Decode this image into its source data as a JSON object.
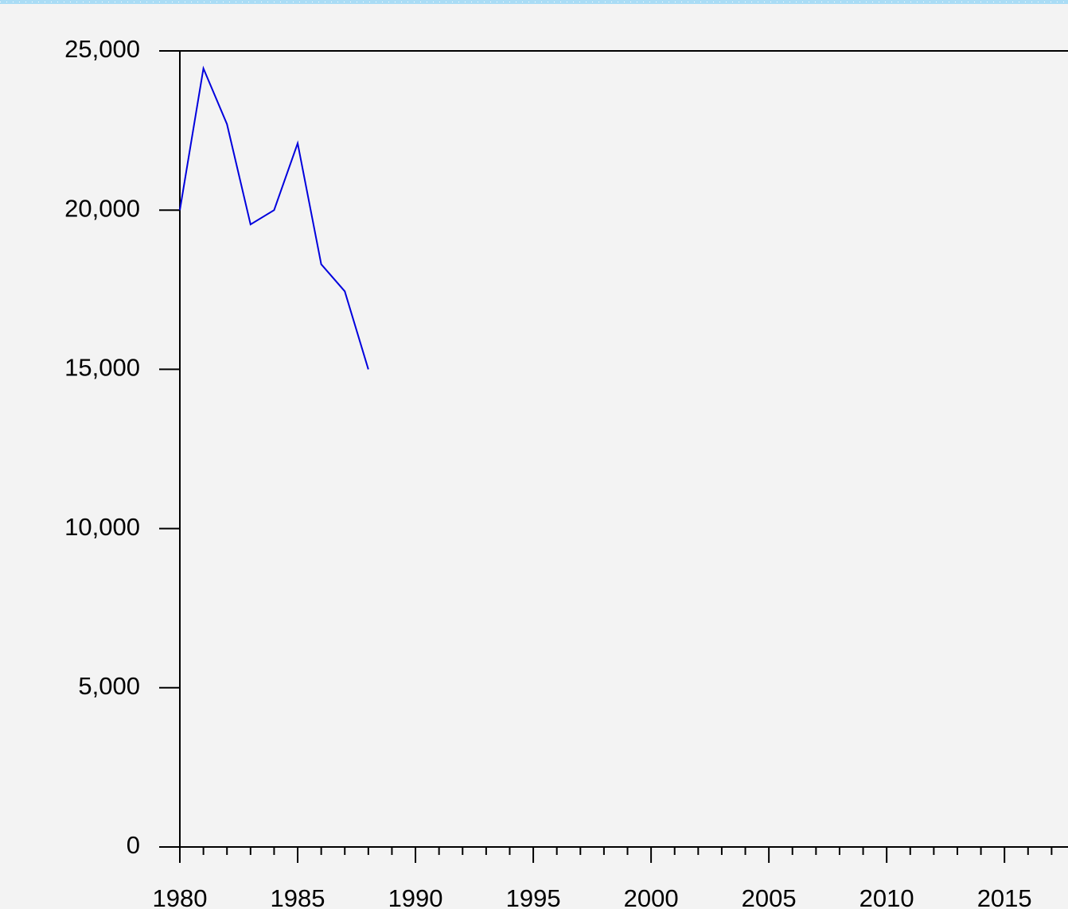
{
  "chart_data": {
    "type": "line",
    "x": [
      1980,
      1981,
      1982,
      1983,
      1984,
      1985,
      1986,
      1987,
      1988
    ],
    "series": [
      {
        "color": "#0000dd",
        "values": [
          20000,
          24450,
          22700,
          19550,
          20000,
          22100,
          18300,
          17450,
          15000
        ]
      }
    ],
    "xlim": [
      1980,
      2018
    ],
    "xticks": [
      1980,
      1985,
      1990,
      1995,
      2000,
      2005,
      2010,
      2015
    ],
    "xminorticks": [
      1981,
      1982,
      1983,
      1984,
      1986,
      1987,
      1988,
      1989,
      1991,
      1992,
      1993,
      1994,
      1996,
      1997,
      1998,
      1999,
      2001,
      2002,
      2003,
      2004,
      2006,
      2007,
      2008,
      2009,
      2011,
      2012,
      2013,
      2014,
      2016,
      2017
    ],
    "ylim": [
      0,
      25000
    ],
    "yticks": [
      0,
      {
        "value": 5000,
        "label": "5,000"
      },
      {
        "value": 10000,
        "label": "10,000"
      },
      {
        "value": 15000,
        "label": "15,000"
      },
      {
        "value": 20000,
        "label": "20,000"
      },
      {
        "value": 25000,
        "label": "25,000"
      }
    ]
  }
}
